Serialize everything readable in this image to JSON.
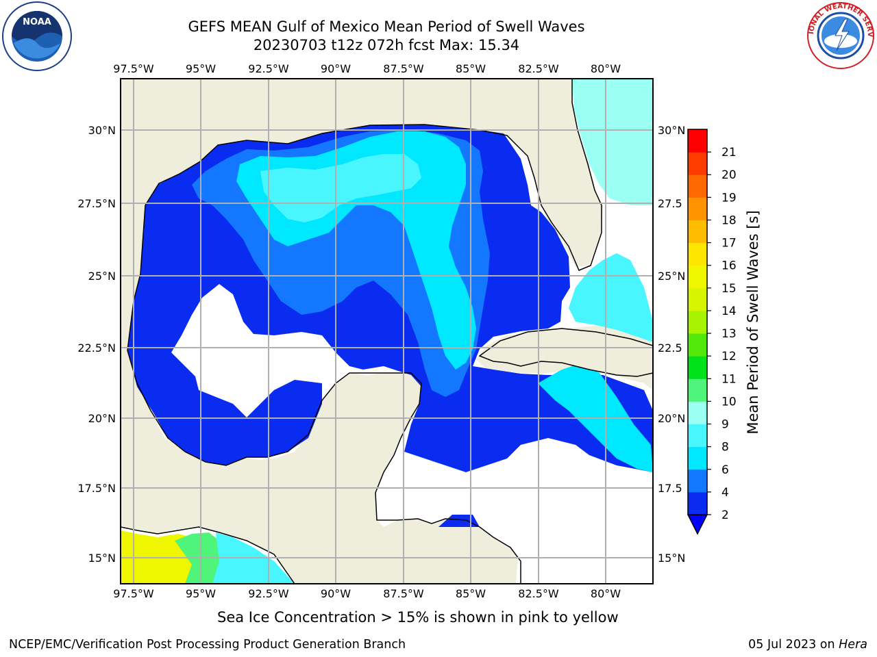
{
  "title": {
    "line1": "GEFS MEAN Gulf of Mexico Mean Period of Swell Waves",
    "line2": "20230703 t12z 072h fcst   Max: 15.34"
  },
  "map": {
    "lon_ticks": [
      "97.5°W",
      "95°W",
      "92.5°W",
      "90°W",
      "87.5°W",
      "85°W",
      "82.5°W",
      "80°W"
    ],
    "lat_ticks": [
      "30°N",
      "27.5°N",
      "25°N",
      "22.5°N",
      "20°N",
      "17.5°N",
      "15°N"
    ],
    "right_lat_ticks": [
      "30°N",
      "27.5",
      "25°N",
      "22.5",
      "20°N",
      "17.5",
      "15°N"
    ],
    "colors": {
      "land": "#efeedd",
      "ocean_no_data": "#ffffff",
      "grid": "#b0b0b0",
      "coast": "#000000"
    }
  },
  "colorbar": {
    "label": "Mean Period of Swell Waves [s]",
    "ticks": [
      "2",
      "4",
      "6",
      "8",
      "9",
      "10",
      "11",
      "12",
      "13",
      "14",
      "15",
      "16",
      "17",
      "18",
      "19",
      "20",
      "21"
    ],
    "levels": [
      {
        "color": "#0a2bf0"
      },
      {
        "color": "#1477ff"
      },
      {
        "color": "#00e8ff"
      },
      {
        "color": "#49f5ff"
      },
      {
        "color": "#9bfff4"
      },
      {
        "color": "#4ff57a"
      },
      {
        "color": "#00e01b"
      },
      {
        "color": "#52e80a"
      },
      {
        "color": "#a6f200"
      },
      {
        "color": "#d7f500"
      },
      {
        "color": "#f0f500"
      },
      {
        "color": "#ffe600"
      },
      {
        "color": "#ffbd00"
      },
      {
        "color": "#ff9400"
      },
      {
        "color": "#ff6900"
      },
      {
        "color": "#ff3c00"
      },
      {
        "color": "#ff0000"
      }
    ],
    "extend_color": "#0000ff"
  },
  "note": "Sea Ice Concentration > 15% is shown in pink to yellow",
  "footer": {
    "left": "NCEP/EMC/Verification Post Processing Product Generation Branch",
    "right_date": "05 Jul 2023 on ",
    "right_host": "Hera"
  },
  "logos": {
    "noaa": "NOAA",
    "nws": "NATIONAL WEATHER SERVICE"
  }
}
